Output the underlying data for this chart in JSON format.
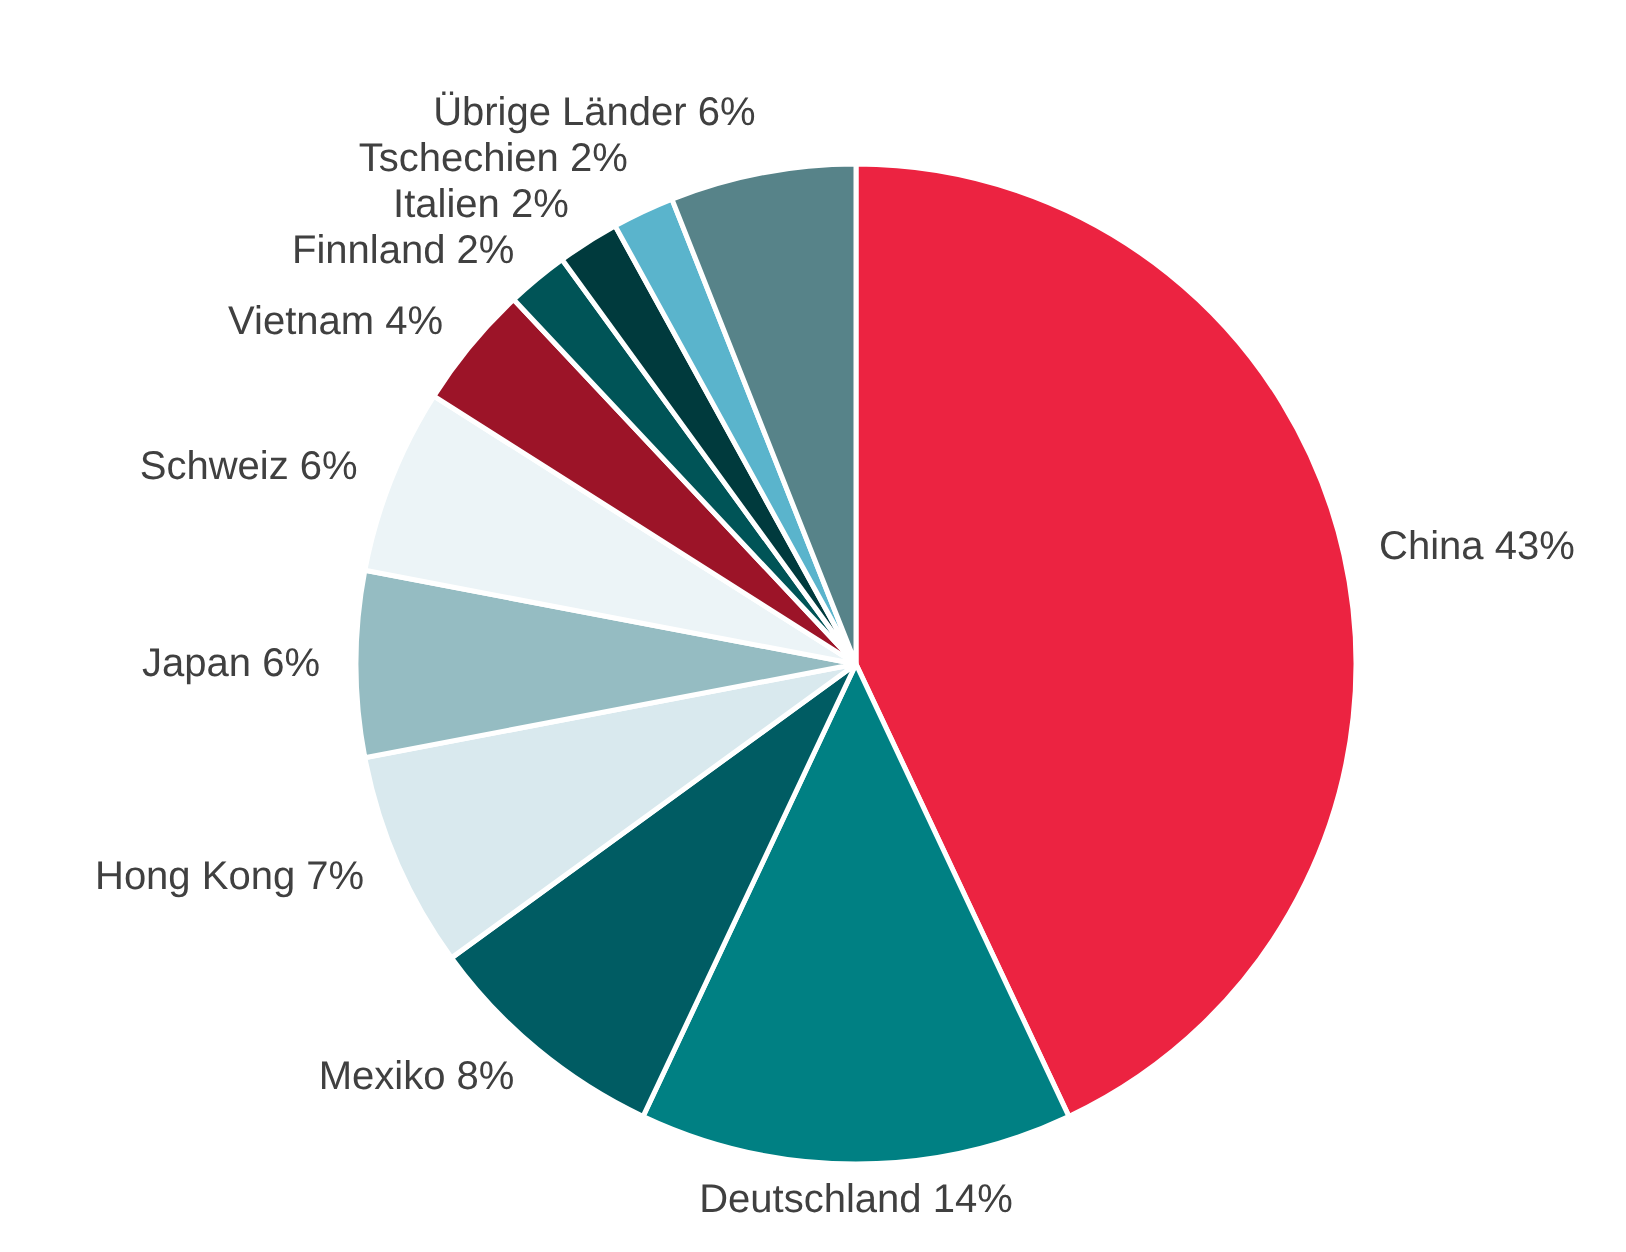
{
  "chart_data": {
    "type": "pie",
    "categories": [
      "China",
      "Deutschland",
      "Mexiko",
      "Hong Kong",
      "Japan",
      "Schweiz",
      "Vietnam",
      "Finnland",
      "Italien",
      "Tschechien",
      "Übrige Länder"
    ],
    "values": [
      43,
      14,
      8,
      7,
      6,
      6,
      4,
      2,
      2,
      2,
      6
    ],
    "value_labels": [
      "43%",
      "14%",
      "8%",
      "7%",
      "6%",
      "6%",
      "4%",
      "2%",
      "2%",
      "2%",
      "6%"
    ],
    "colors": [
      "#ec2341",
      "#008083",
      "#005c63",
      "#d9e9ee",
      "#95bcc2",
      "#ecf4f7",
      "#9c1428",
      "#005457",
      "#003a3d",
      "#5ab4cc",
      "#578389"
    ]
  }
}
